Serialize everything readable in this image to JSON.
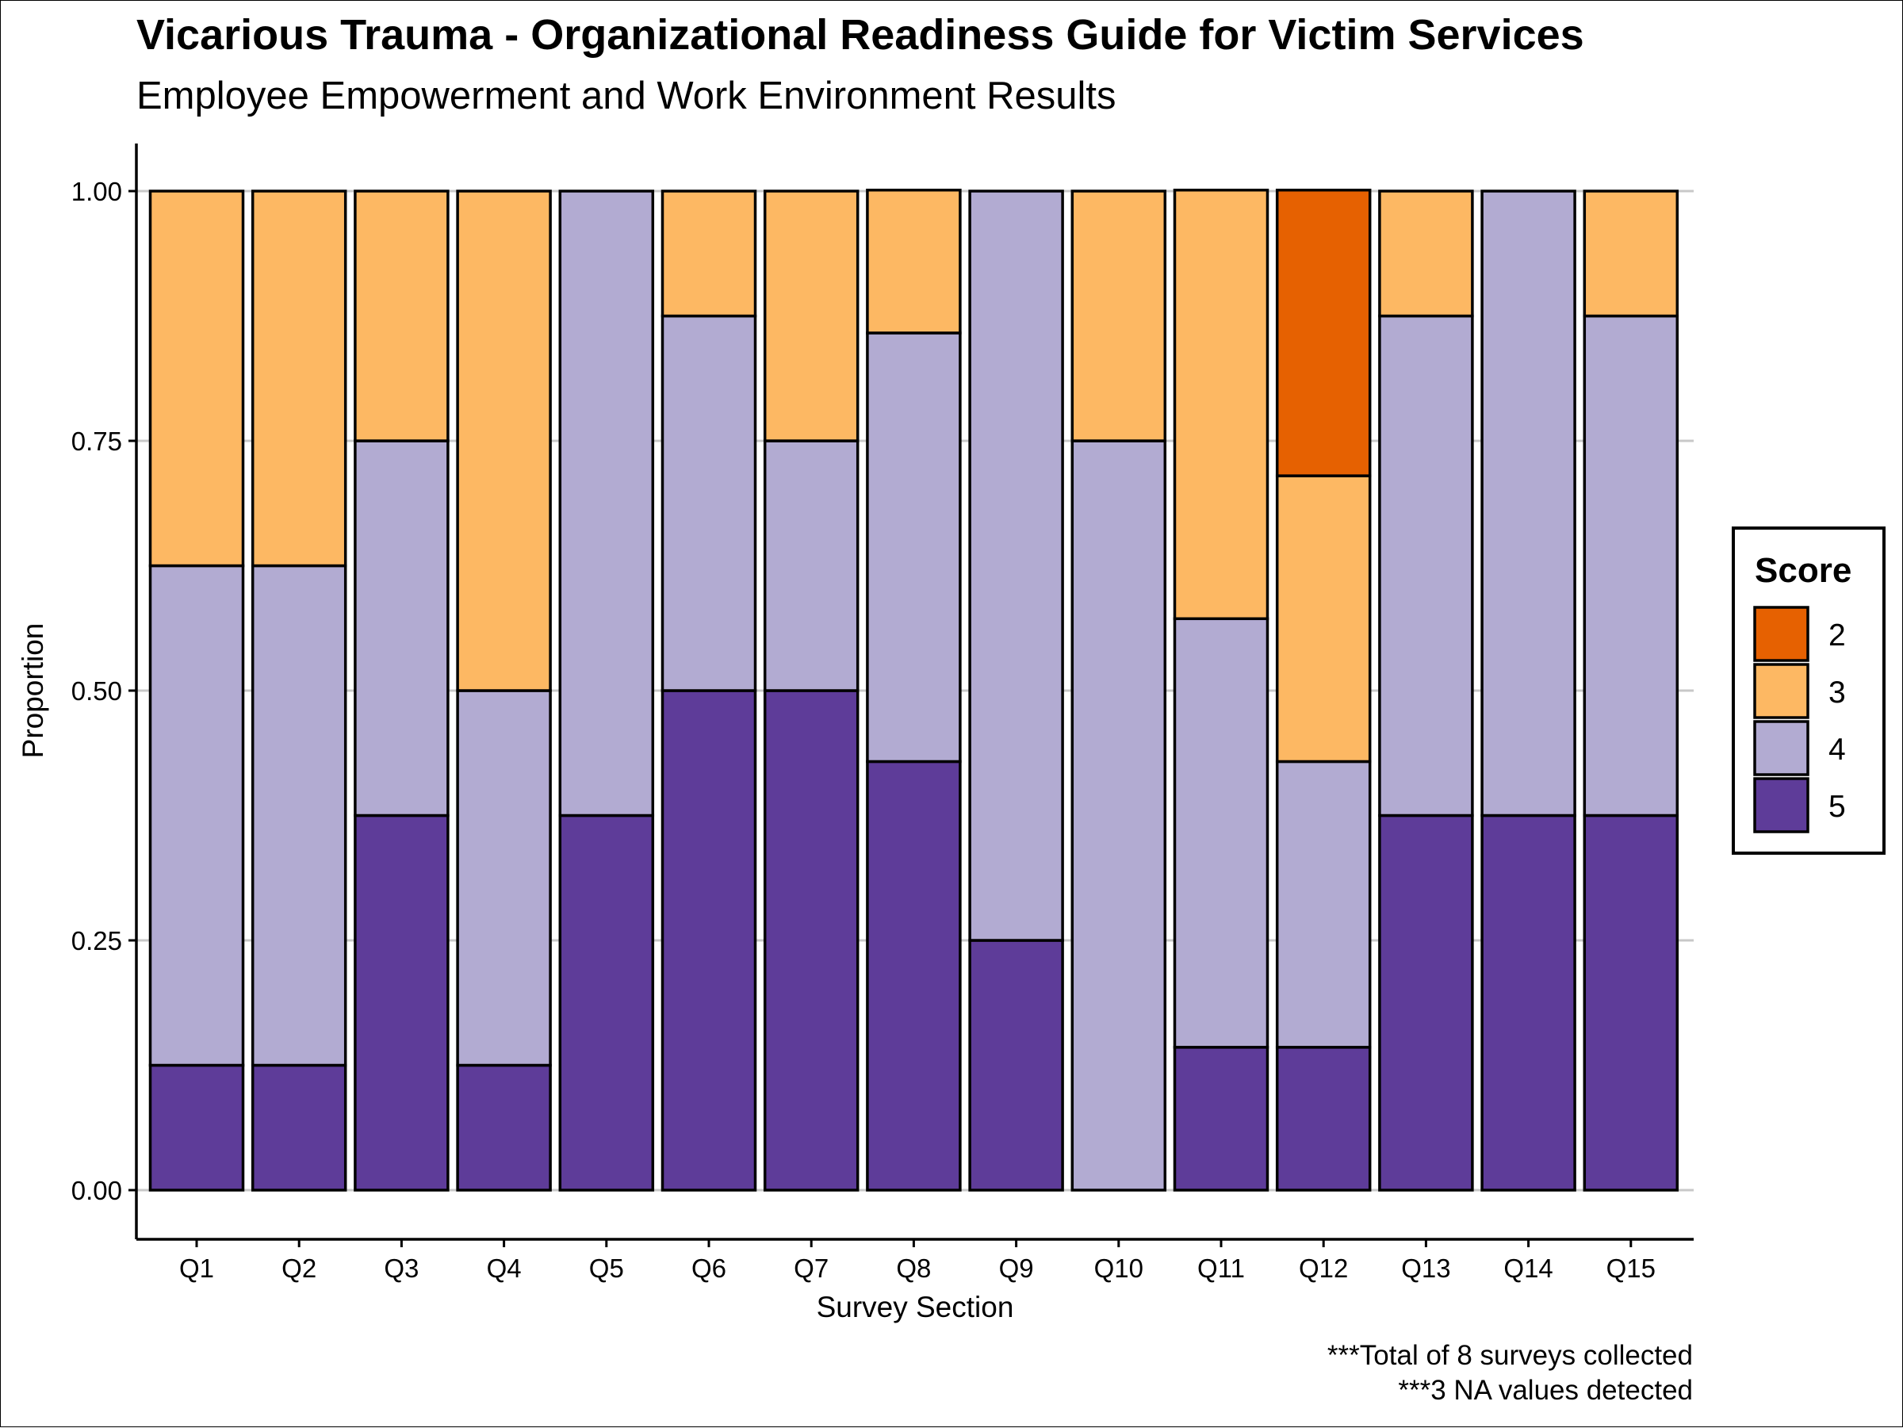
{
  "title": "Vicarious Trauma - Organizational Readiness Guide for Victim Services",
  "subtitle": "Employee Empowerment and Work Environment Results",
  "captions": [
    "***Total of 8 surveys collected",
    "***3 NA values detected"
  ],
  "colors": {
    "2": "#e66101",
    "3": "#fdb863",
    "4": "#b2abd2",
    "5": "#5e3c99",
    "gridline": "#c8c8c8",
    "stroke": "#000000"
  },
  "chart_data": {
    "type": "bar",
    "stacked": true,
    "xlabel": "Survey Section",
    "ylabel": "Proportion",
    "ylim": [
      0,
      1
    ],
    "yticks": [
      0,
      0.25,
      0.5,
      0.75,
      1
    ],
    "ytick_labels": [
      "0.00",
      "0.25",
      "0.50",
      "0.75",
      "1.00"
    ],
    "grid": "horizontal",
    "legend": {
      "title": "Score",
      "position": "right"
    },
    "categories": [
      "Q1",
      "Q2",
      "Q3",
      "Q4",
      "Q5",
      "Q6",
      "Q7",
      "Q8",
      "Q9",
      "Q10",
      "Q11",
      "Q12",
      "Q13",
      "Q14",
      "Q15"
    ],
    "series": [
      {
        "name": "2",
        "values": [
          0,
          0,
          0,
          0,
          0,
          0,
          0,
          0,
          0,
          0,
          0,
          0.286,
          0,
          0,
          0
        ]
      },
      {
        "name": "3",
        "values": [
          0.375,
          0.375,
          0.25,
          0.5,
          0,
          0.125,
          0.25,
          0.143,
          0,
          0.25,
          0.429,
          0.286,
          0.125,
          0,
          0.125
        ]
      },
      {
        "name": "4",
        "values": [
          0.5,
          0.5,
          0.375,
          0.375,
          0.625,
          0.375,
          0.25,
          0.429,
          0.75,
          0.75,
          0.429,
          0.286,
          0.5,
          0.625,
          0.5
        ]
      },
      {
        "name": "5",
        "values": [
          0.125,
          0.125,
          0.375,
          0.125,
          0.375,
          0.5,
          0.5,
          0.429,
          0.25,
          0,
          0.143,
          0.143,
          0.375,
          0.375,
          0.375
        ]
      }
    ]
  }
}
